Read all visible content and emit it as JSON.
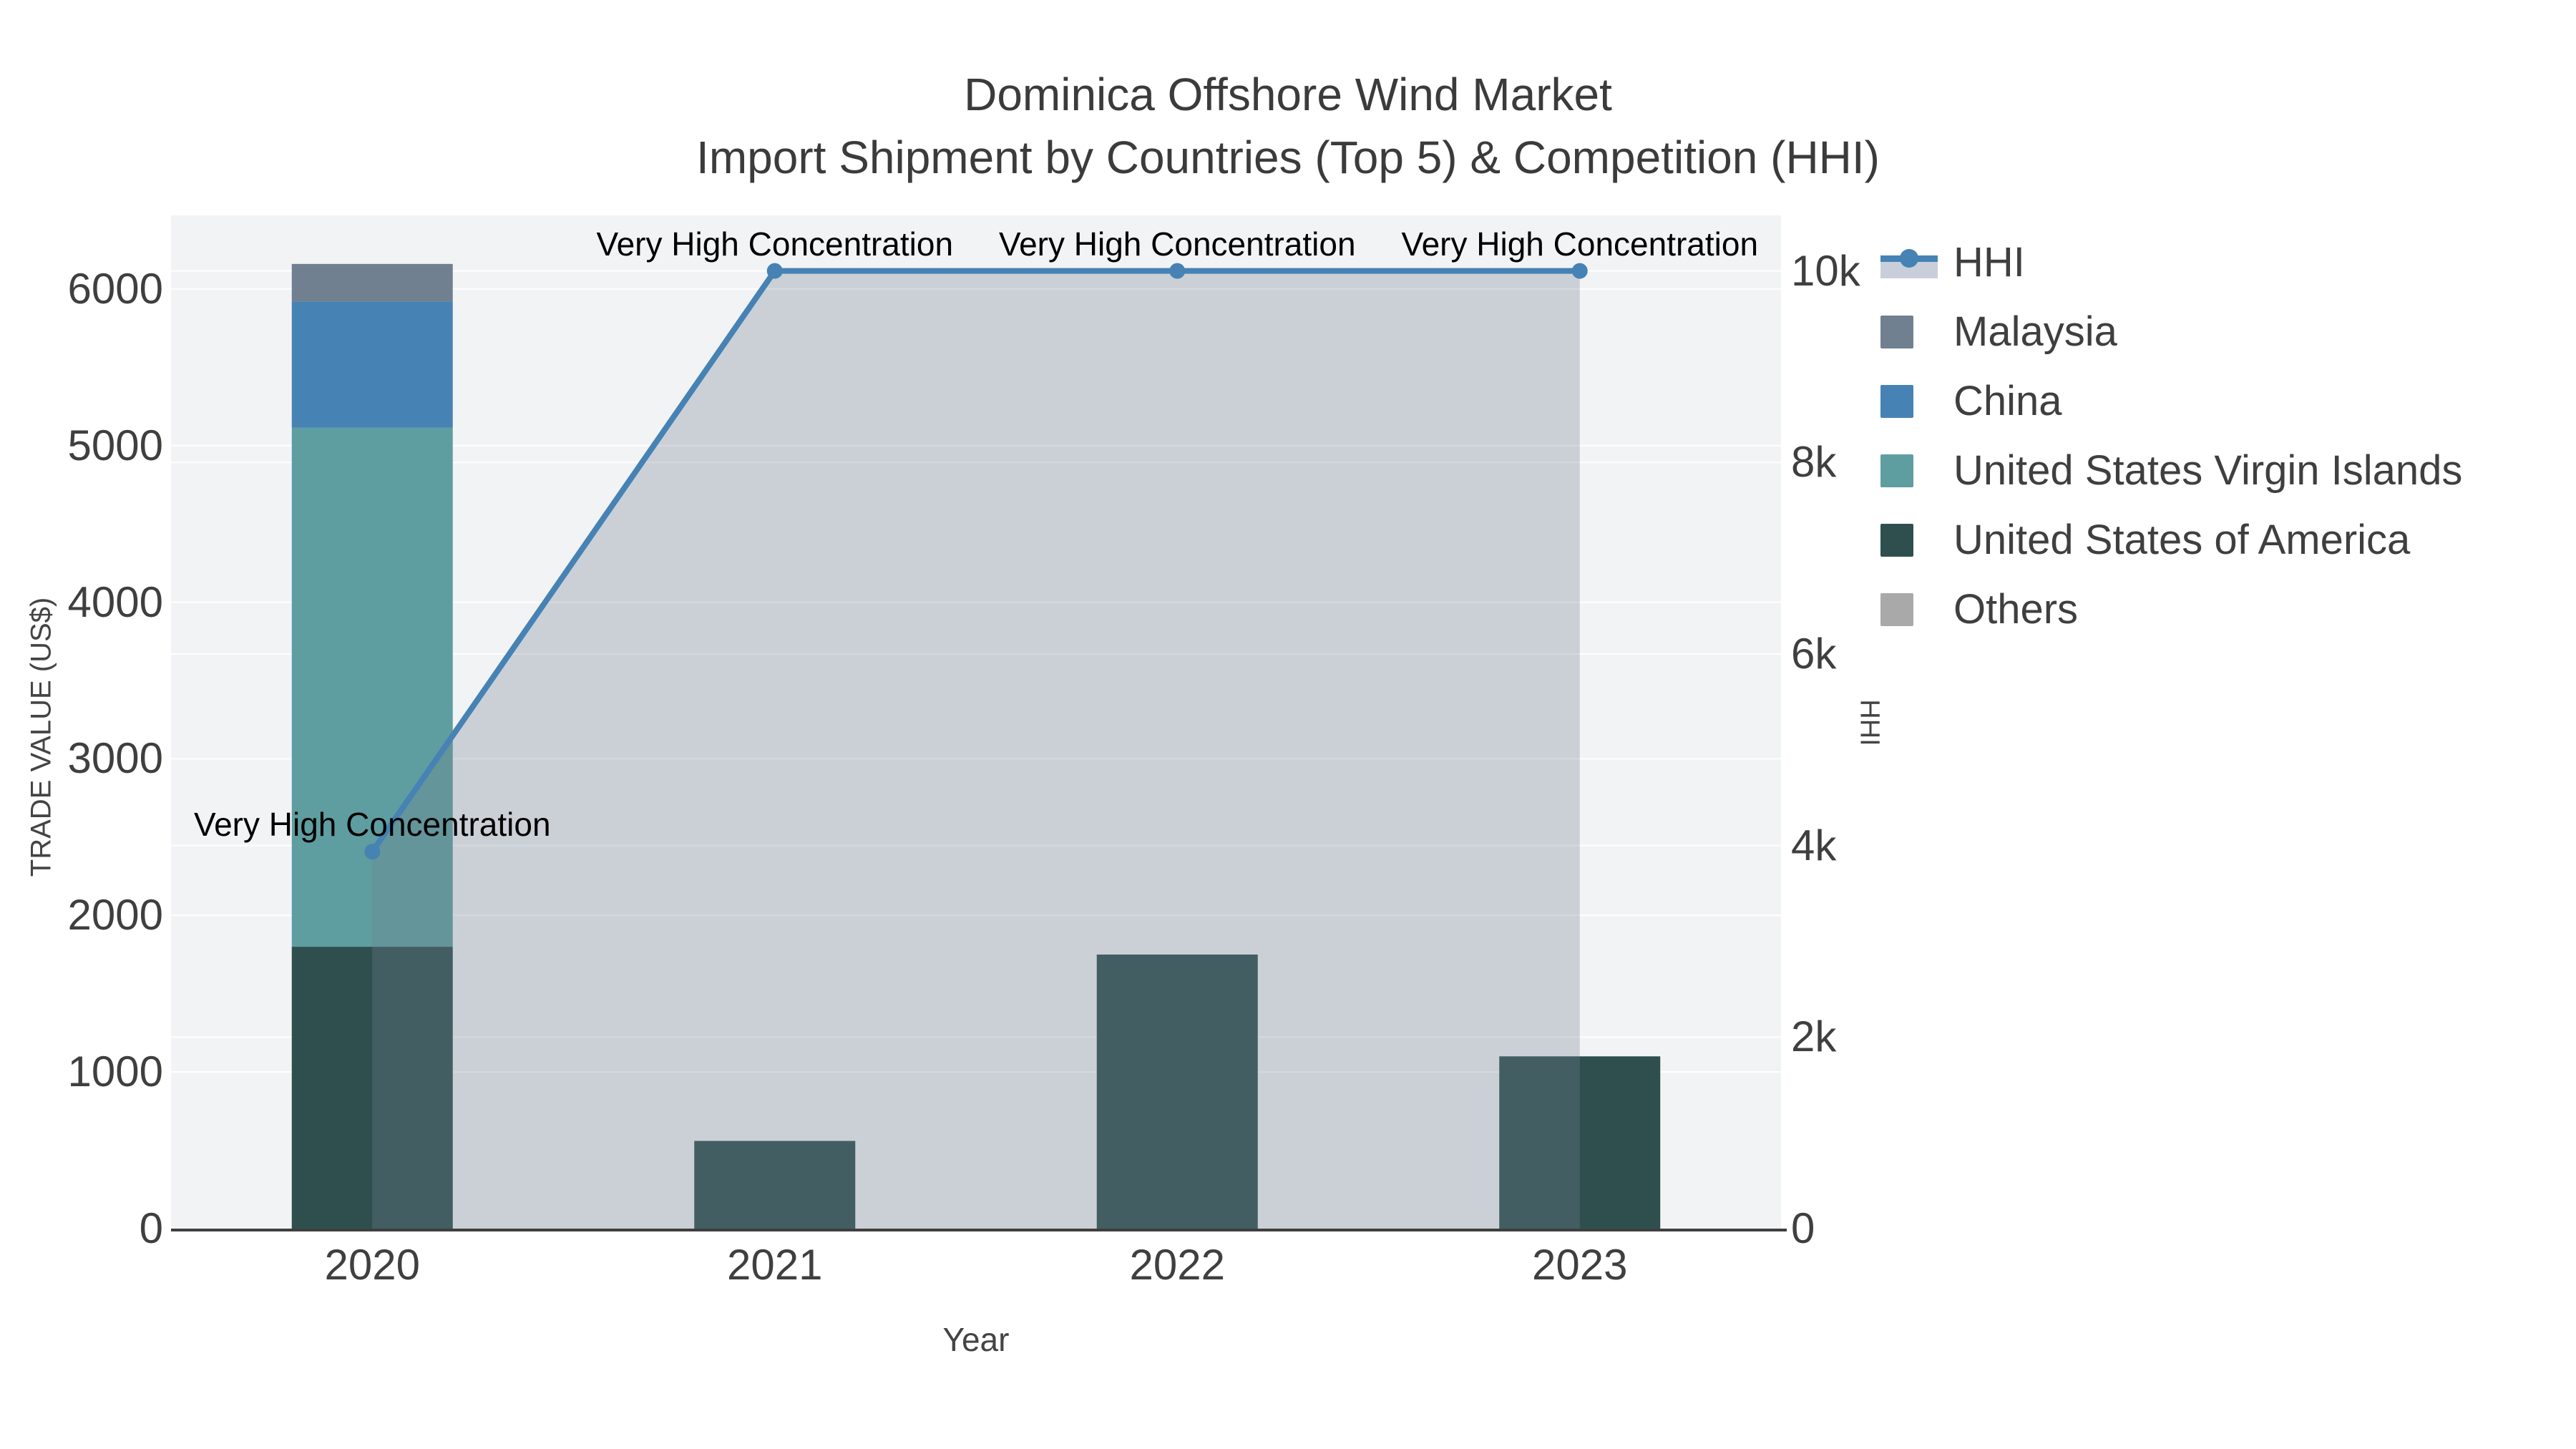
{
  "title": {
    "line1": "Dominica Offshore Wind Market",
    "line2": "Import Shipment by Countries (Top 5) & Competition (HHI)"
  },
  "axes": {
    "x": {
      "title": "Year",
      "categories": [
        "2020",
        "2021",
        "2022",
        "2023"
      ]
    },
    "y_left": {
      "title": "TRADE VALUE (US$)",
      "tick_labels": [
        "0",
        "1000",
        "2000",
        "3000",
        "4000",
        "5000",
        "6000"
      ],
      "tick_values": [
        0,
        1000,
        2000,
        3000,
        4000,
        5000,
        6000
      ],
      "range": [
        0,
        6470
      ]
    },
    "y_right": {
      "title": "HHI",
      "tick_labels": [
        "0",
        "2k",
        "4k",
        "6k",
        "8k",
        "10k"
      ],
      "tick_values": [
        0,
        2000,
        4000,
        6000,
        8000,
        10000
      ],
      "range": [
        0,
        10580
      ]
    }
  },
  "legend": [
    {
      "label": "HHI",
      "type": "line",
      "color": "#4682b4",
      "fill": "#c9cfda"
    },
    {
      "label": "Malaysia",
      "type": "swatch",
      "color": "#708090"
    },
    {
      "label": "China",
      "type": "swatch",
      "color": "#4682b4"
    },
    {
      "label": "United States Virgin Islands",
      "type": "swatch",
      "color": "#5f9ea0"
    },
    {
      "label": "United States of America",
      "type": "swatch",
      "color": "#2f4f4f"
    },
    {
      "label": "Others",
      "type": "swatch",
      "color": "#a9a9a9"
    }
  ],
  "colors": {
    "plot_background": "#f2f3f5",
    "grid": "#ffffff",
    "axis_line": "#3f3f3f",
    "text": "#444444",
    "annotation_text": "#000000",
    "hhi_line": "#4682b4",
    "hhi_area_fill": "rgba(112,128,144,0.30)"
  },
  "chart_data": {
    "type": [
      "bar",
      "line"
    ],
    "title": "Dominica Offshore Wind Market — Import Shipment by Countries (Top 5) & Competition (HHI)",
    "xlabel": "Year",
    "ylabel_left": "TRADE VALUE (US$)",
    "ylabel_right": "HHI",
    "categories": [
      "2020",
      "2021",
      "2022",
      "2023"
    ],
    "bar_mode": "stacked",
    "bar_series": [
      {
        "name": "United States of America",
        "color": "#2f4f4f",
        "values": [
          1800,
          560,
          1750,
          1100
        ]
      },
      {
        "name": "United States Virgin Islands",
        "color": "#5f9ea0",
        "values": [
          3315,
          0,
          0,
          0
        ]
      },
      {
        "name": "China",
        "color": "#4682b4",
        "values": [
          805,
          0,
          0,
          0
        ]
      },
      {
        "name": "Malaysia",
        "color": "#708090",
        "values": [
          240,
          0,
          0,
          0
        ]
      },
      {
        "name": "Others",
        "color": "#a9a9a9",
        "values": [
          0,
          0,
          0,
          0
        ]
      }
    ],
    "line_series": {
      "name": "HHI",
      "axis": "right",
      "color": "#4682b4",
      "area_fill": "rgba(112,128,144,0.30)",
      "values": [
        3936,
        10000,
        10000,
        10000
      ]
    },
    "annotations": [
      {
        "text": "Very High Concentration",
        "category": "2020",
        "value": 3936
      },
      {
        "text": "Very High Concentration",
        "category": "2021",
        "value": 10000
      },
      {
        "text": "Very High Concentration",
        "category": "2022",
        "value": 10000
      },
      {
        "text": "Very High Concentration",
        "category": "2023",
        "value": 10000
      }
    ],
    "ylim_left": [
      0,
      6470
    ],
    "ylim_right": [
      0,
      10580
    ],
    "grid": true,
    "legend_position": "right"
  }
}
